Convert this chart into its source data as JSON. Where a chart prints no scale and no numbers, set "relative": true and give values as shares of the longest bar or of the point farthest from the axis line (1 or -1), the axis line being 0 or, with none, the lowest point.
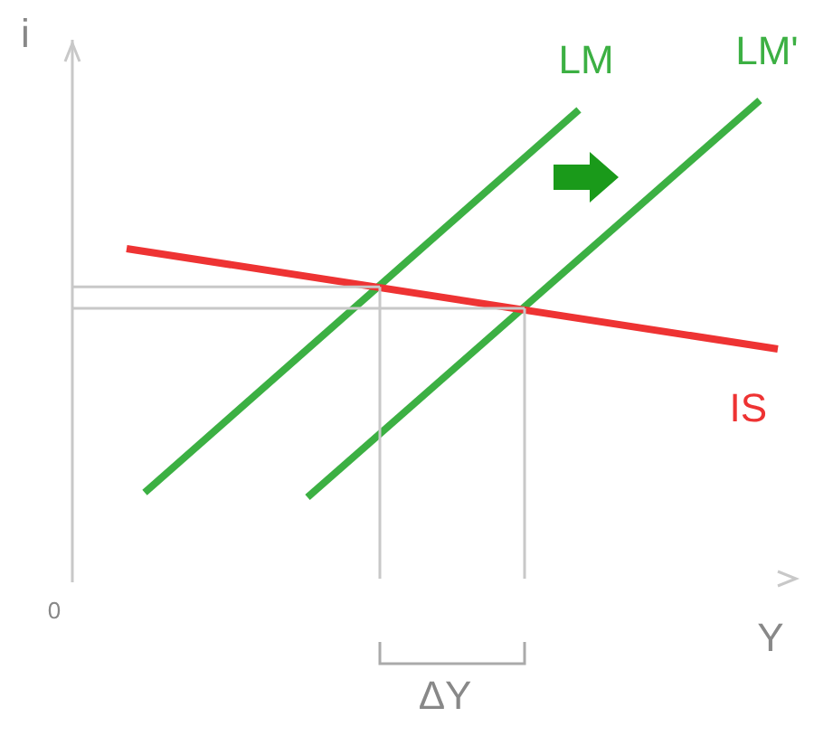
{
  "chart_data": {
    "type": "line",
    "relative": true,
    "xlabel": "Y",
    "ylabel": "i",
    "annotations": [
      "0",
      "ΔY"
    ],
    "grid": false,
    "legend": false,
    "marker": "none",
    "line_style": "solid",
    "categories": [
      null,
      null,
      null,
      null,
      null,
      null,
      null,
      null,
      null,
      null,
      null,
      null,
      null,
      null,
      null,
      null,
      null,
      null,
      null,
      null,
      null,
      null,
      null,
      null,
      null,
      null,
      null,
      null,
      null,
      null,
      null,
      null,
      null,
      null,
      null,
      null,
      null,
      null,
      null,
      null,
      null
    ],
    "series": [
      {
        "name": "LM",
        "color": "#3cb043",
        "values": [
          null,
          null,
          null,
          null,
          0.18,
          null,
          null,
          null,
          null,
          null,
          null,
          null,
          null,
          null,
          null,
          null,
          null,
          null,
          null,
          null,
          null,
          null,
          null,
          null,
          null,
          null,
          null,
          null,
          0.98,
          null,
          null,
          null,
          null,
          null,
          null,
          null,
          null,
          null,
          null,
          null,
          null
        ]
      },
      {
        "name": "LM'",
        "color": "#3cb043",
        "values": [
          null,
          null,
          null,
          null,
          null,
          null,
          null,
          null,
          null,
          null,
          null,
          null,
          null,
          0.17,
          null,
          null,
          null,
          null,
          null,
          null,
          null,
          null,
          null,
          null,
          null,
          null,
          null,
          null,
          null,
          null,
          null,
          null,
          null,
          null,
          null,
          null,
          null,
          null,
          1,
          null,
          null
        ]
      },
      {
        "name": "IS",
        "color": "#ee3333",
        "values": [
          null,
          null,
          null,
          0.69,
          null,
          null,
          null,
          null,
          null,
          null,
          null,
          null,
          null,
          null,
          null,
          null,
          null,
          null,
          null,
          null,
          null,
          null,
          null,
          null,
          null,
          null,
          null,
          null,
          null,
          null,
          null,
          null,
          null,
          null,
          null,
          null,
          null,
          null,
          null,
          0.48,
          null
        ]
      },
      {
        "color": "#c8c8c8",
        "values": [
          0.61,
          null,
          null,
          null,
          null,
          null,
          null,
          null,
          null,
          null,
          null,
          null,
          null,
          null,
          null,
          null,
          null,
          0.61,
          null,
          null,
          null,
          null,
          null,
          null,
          null,
          null,
          null,
          null,
          null,
          null,
          null,
          null,
          null,
          null,
          null,
          null,
          null,
          null,
          null,
          null,
          null
        ]
      },
      {
        "color": "#c8c8c8",
        "values": [
          0.565,
          null,
          null,
          null,
          null,
          null,
          null,
          null,
          null,
          null,
          null,
          null,
          null,
          null,
          null,
          null,
          null,
          null,
          null,
          null,
          null,
          null,
          null,
          null,
          null,
          0.565,
          null,
          null,
          null,
          null,
          null,
          null,
          null,
          null,
          null,
          null,
          null,
          null,
          null,
          null,
          null
        ]
      }
    ]
  }
}
